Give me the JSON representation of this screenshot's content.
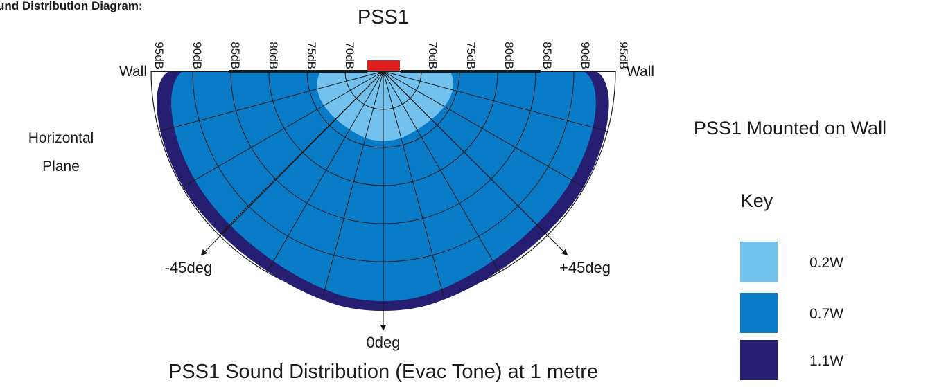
{
  "header": {
    "title": "und Distribution Diagram:"
  },
  "diagram": {
    "device_label": "PSS1",
    "left_wall_label": "Wall",
    "right_wall_label": "Wall",
    "plane_label_line1": "Horizontal",
    "plane_label_line2": "Plane",
    "db_labels_left": [
      "95dB",
      "90dB",
      "85dB",
      "80dB",
      "75dB",
      "70dB"
    ],
    "db_labels_right": [
      "70dB",
      "75dB",
      "80dB",
      "85dB",
      "90dB",
      "95dB"
    ],
    "angle_left_label": "-45deg",
    "angle_right_label": "+45deg",
    "angle_bottom_label": "0deg",
    "caption": "PSS1 Sound Distribution (Evac Tone) at 1 metre"
  },
  "side_panel": {
    "heading": "PSS1 Mounted on Wall",
    "key_title": "Key",
    "key": [
      {
        "label": "0.2W",
        "color": "#73c2ee"
      },
      {
        "label": "0.7W",
        "color": "#0a7bc6"
      },
      {
        "label": "1.1W",
        "color": "#261e70"
      }
    ]
  },
  "colors": {
    "speaker": "#dd1f1f",
    "grid_line": "#1a1a1a"
  }
}
